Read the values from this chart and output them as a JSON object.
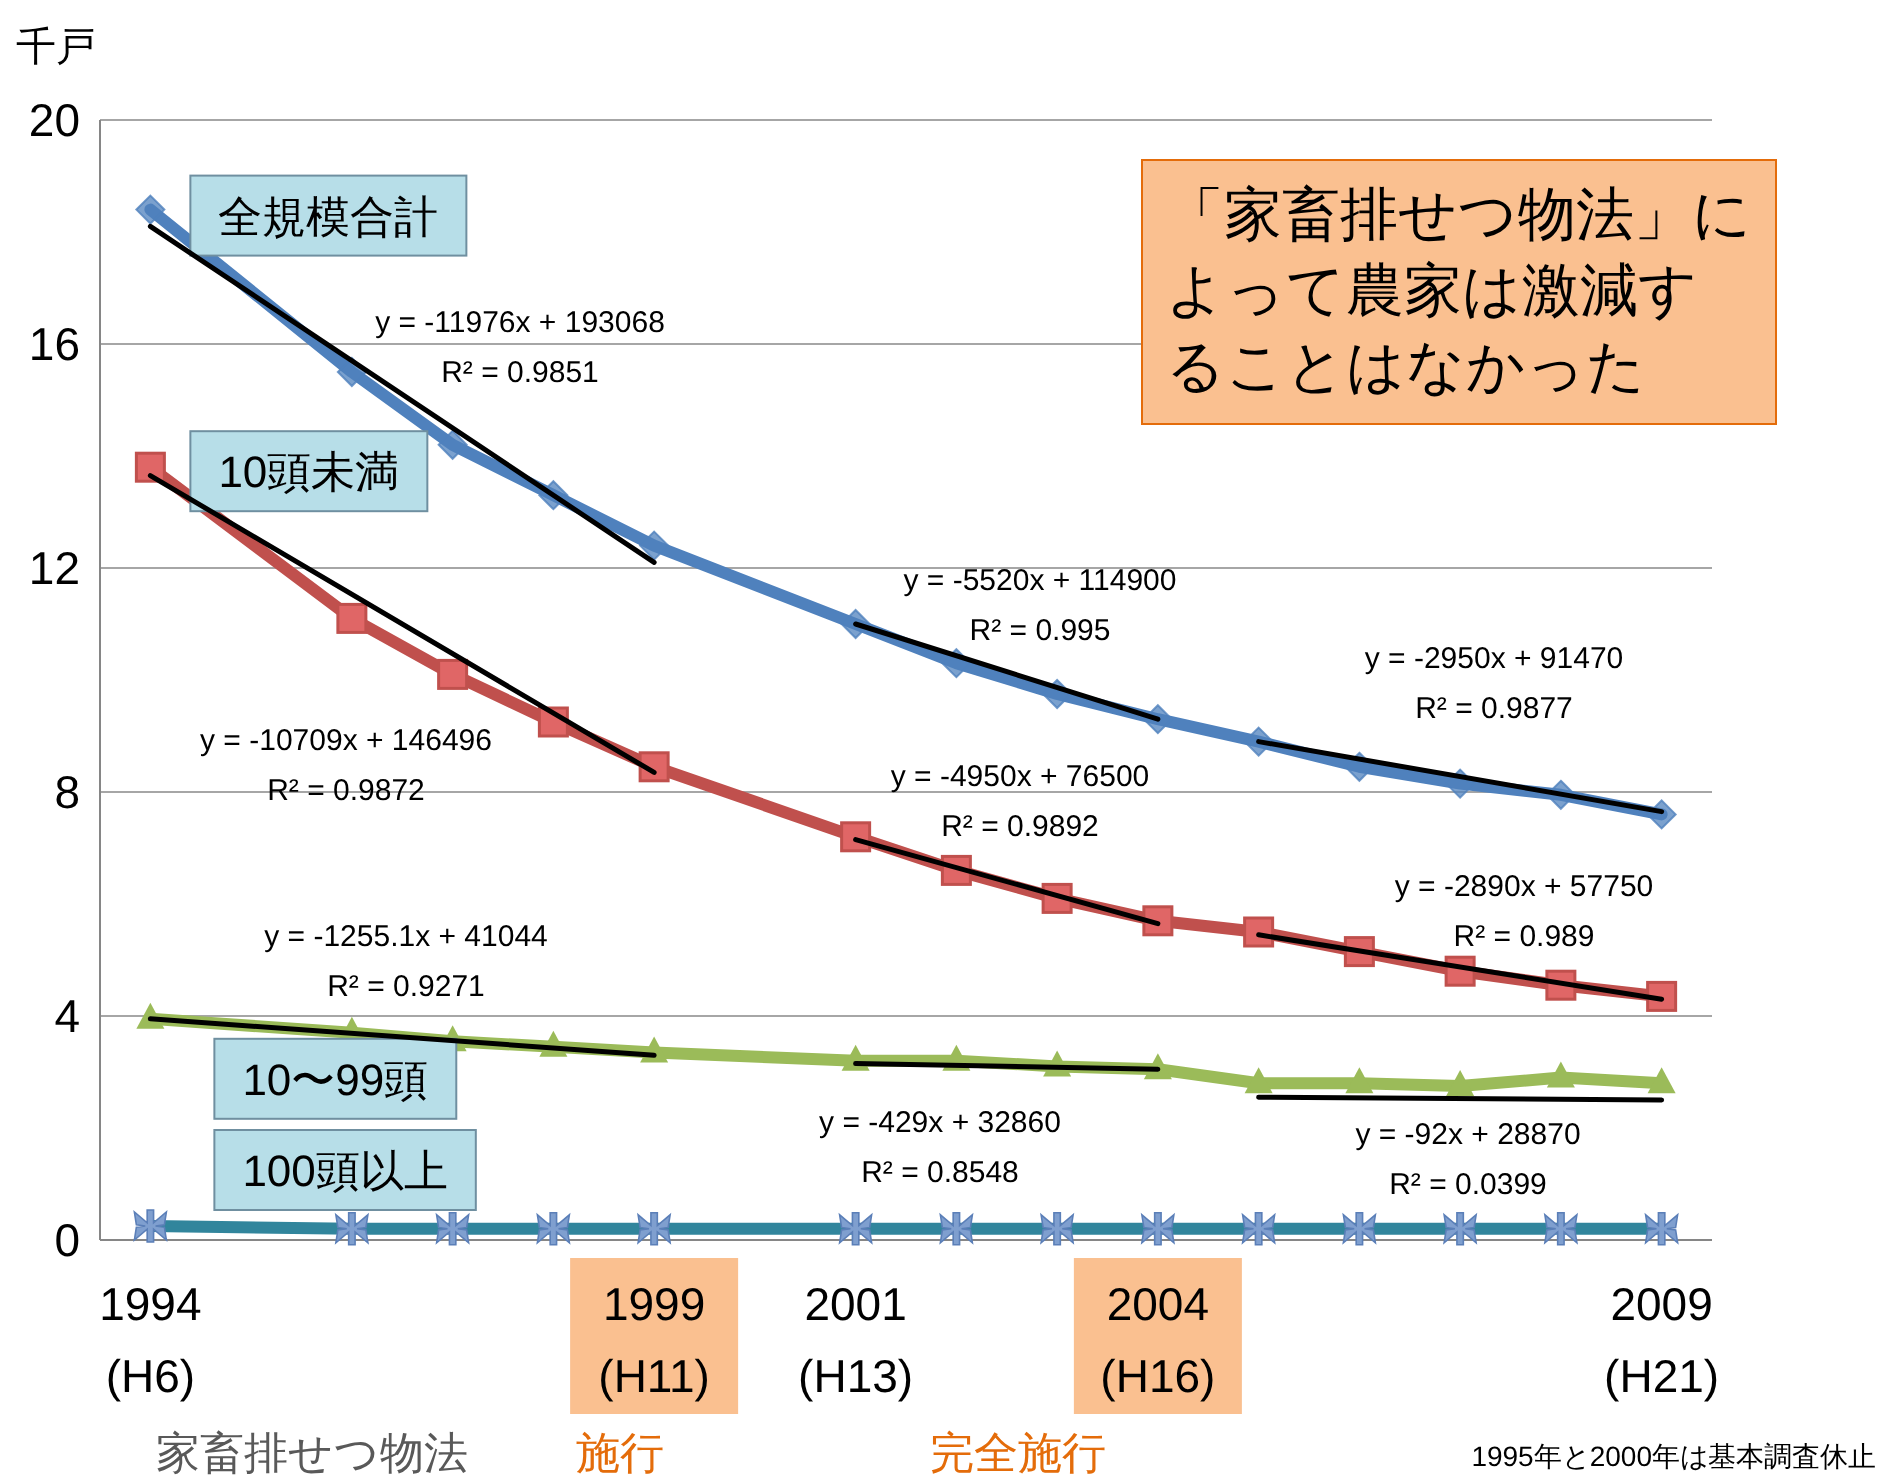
{
  "chart_data": {
    "type": "line",
    "ylabel": "千戸",
    "xlim": [
      1993.5,
      2009.5
    ],
    "xticks": [
      1994,
      1999,
      2001,
      2004,
      2009
    ],
    "legend": "left",
    "ylim": [
      0,
      20
    ],
    "yticks": [
      0,
      4,
      8,
      12,
      16,
      20
    ],
    "grid": "y",
    "line_style": "solid",
    "x": [
      1994,
      1996,
      1997,
      1998,
      1999,
      2001,
      2002,
      2003,
      2004,
      2005,
      2006,
      2007,
      2008,
      2009
    ],
    "series": [
      {
        "name": "全規模合計",
        "color": "#4f81bd",
        "marker": "diamond",
        "values": [
          18.4,
          15.5,
          14.2,
          13.3,
          12.4,
          11.0,
          10.3,
          9.75,
          9.3,
          8.9,
          8.45,
          8.15,
          7.95,
          7.6
        ]
      },
      {
        "name": "10頭未満",
        "color": "#c0504d",
        "marker": "square",
        "values": [
          13.8,
          11.1,
          10.1,
          9.25,
          8.45,
          7.2,
          6.6,
          6.1,
          5.7,
          5.5,
          5.15,
          4.8,
          4.55,
          4.35
        ]
      },
      {
        "name": "10〜99頭",
        "color": "#9bbb59",
        "marker": "triangle",
        "values": [
          3.95,
          3.7,
          3.55,
          3.45,
          3.35,
          3.2,
          3.2,
          3.1,
          3.05,
          2.8,
          2.8,
          2.75,
          2.9,
          2.8
        ]
      },
      {
        "name": "100頭以上",
        "color": "#31859c",
        "marker": "cross",
        "values": [
          0.25,
          0.2,
          0.2,
          0.2,
          0.2,
          0.2,
          0.2,
          0.2,
          0.2,
          0.2,
          0.2,
          0.2,
          0.2,
          0.2
        ]
      },
      {
        "type": "line",
        "color": "#000000",
        "marker": "none",
        "x": [
          1994,
          1999
        ],
        "values": [
          18.1,
          12.1
        ]
      },
      {
        "type": "line",
        "color": "#000000",
        "marker": "none",
        "x": [
          2001,
          2004
        ],
        "values": [
          11.0,
          9.3
        ]
      },
      {
        "type": "line",
        "color": "#000000",
        "marker": "none",
        "x": [
          2005,
          2009
        ],
        "values": [
          8.9,
          7.65
        ]
      },
      {
        "type": "line",
        "color": "#000000",
        "marker": "none",
        "x": [
          1994,
          1999
        ],
        "values": [
          13.65,
          8.35
        ]
      },
      {
        "type": "line",
        "color": "#000000",
        "marker": "none",
        "x": [
          2001,
          2004
        ],
        "values": [
          7.15,
          5.65
        ]
      },
      {
        "type": "line",
        "color": "#000000",
        "marker": "none",
        "x": [
          2005,
          2009
        ],
        "values": [
          5.45,
          4.3
        ]
      },
      {
        "type": "line",
        "color": "#000000",
        "marker": "none",
        "x": [
          1994,
          1999
        ],
        "values": [
          3.95,
          3.3
        ]
      },
      {
        "type": "line",
        "color": "#000000",
        "marker": "none",
        "x": [
          2001,
          2004
        ],
        "values": [
          3.15,
          3.05
        ]
      },
      {
        "type": "line",
        "color": "#000000",
        "marker": "none",
        "x": [
          2005,
          2009
        ],
        "values": [
          2.55,
          2.5
        ]
      }
    ],
    "annotations": [
      "y = -11976x + 193068",
      "R² = 0.9851",
      "y = -10709x + 146496",
      "R² = 0.9872",
      "y = -1255.1x + 41044",
      "R² = 0.9271",
      "y = -5520x + 114900",
      "R² = 0.995",
      "y = -4950x + 76500",
      "R² = 0.9892",
      "y = -429x + 32860",
      "R² = 0.8548",
      "y = -2950x + 91470",
      "R² = 0.9877",
      "y = -2890x + 57750",
      "R² = 0.989",
      "y = -92x + 28870",
      "R² = 0.0399",
      "「家畜排せつ物法」によって農家は激減することはなかった",
      "家畜排せつ物法",
      "施行",
      "完全施行",
      "1995年と2000年は基本調査休止",
      "(H6)",
      "(H11)",
      "(H13)",
      "(H16)",
      "(H21)"
    ]
  }
}
